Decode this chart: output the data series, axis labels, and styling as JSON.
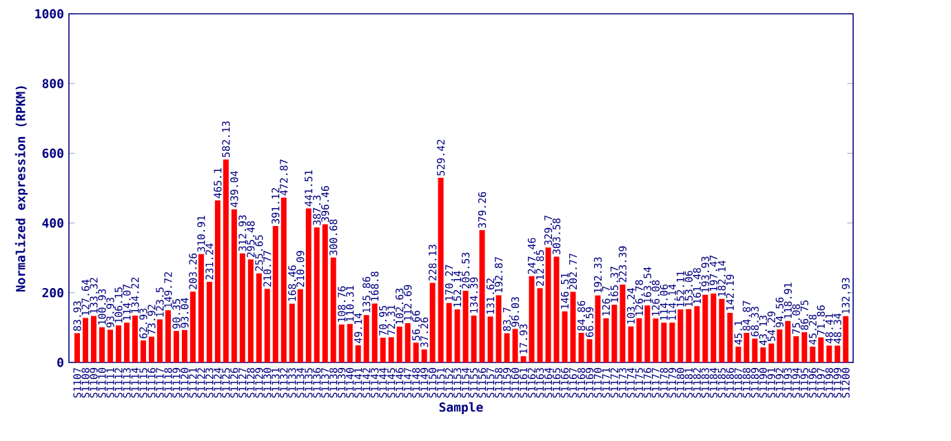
{
  "chart_data": {
    "type": "bar",
    "xlabel": "Sample",
    "ylabel": "Normalized expression (RPKM)",
    "color": "#ff0000",
    "data_labels": true,
    "categories": [
      "S1107",
      "S1108",
      "S1109",
      "S1110",
      "S1111",
      "S1112",
      "S1113",
      "S1114",
      "S1115",
      "S1116",
      "S1117",
      "S1118",
      "S1119",
      "S1120",
      "S1121",
      "S1122",
      "S1123",
      "S1124",
      "S1125",
      "S1126",
      "S1127",
      "S1128",
      "S1129",
      "S1130",
      "S1131",
      "S1132",
      "S1133",
      "S1134",
      "S1135",
      "S1136",
      "S1137",
      "S1138",
      "S1139",
      "S1140",
      "S1141",
      "S1142",
      "S1143",
      "S1144",
      "S1145",
      "S1146",
      "S1147",
      "S1148",
      "S1149",
      "S1150",
      "S1151",
      "S1152",
      "S1153",
      "S1154",
      "S1155",
      "S1156",
      "S1157",
      "S1158",
      "S1159",
      "S1160",
      "S1161",
      "S1162",
      "S1163",
      "S1164",
      "S1165",
      "S1166",
      "S1167",
      "S1168",
      "S1169",
      "S1170",
      "S1171",
      "S1172",
      "S1173",
      "S1174",
      "S1175",
      "S1176",
      "S1177",
      "S1178",
      "S1179",
      "S1180",
      "S1181",
      "S1182",
      "S1183",
      "S1184",
      "S1185",
      "S1186",
      "S1187",
      "S1188",
      "S1189",
      "S1190",
      "S1191",
      "S1192",
      "S1193",
      "S1194",
      "S1195",
      "S1196",
      "S1197",
      "S1198",
      "S1199",
      "S1200"
    ],
    "values": [
      83.93,
      127.64,
      133.32,
      100.93,
      93.93,
      106.15,
      114.07,
      134.22,
      62.93,
      73.92,
      123.5,
      149.72,
      90.35,
      93.04,
      203.26,
      310.91,
      231.24,
      465.1,
      582.13,
      439.04,
      312.93,
      295.48,
      255.65,
      210.77,
      391.12,
      472.87,
      168.46,
      210.09,
      441.51,
      387.3,
      396.46,
      300.68,
      108.76,
      110.31,
      49.14,
      135.86,
      168.8,
      70.95,
      72.31,
      102.63,
      112.69,
      56.66,
      37.26,
      228.13,
      529.42,
      170.27,
      152.14,
      205.53,
      134.39,
      379.26,
      131.62,
      192.87,
      83.7,
      96.03,
      17.93,
      247.46,
      212.85,
      329.7,
      303.58,
      146.51,
      202.77,
      84.86,
      66.59,
      192.33,
      126.7,
      165.37,
      223.39,
      103.24,
      126.78,
      163.54,
      126.08,
      114.06,
      114.14,
      152.11,
      153.06,
      161.48,
      193.93,
      197.47,
      182.14,
      142.19,
      45.1,
      84.87,
      68.33,
      43.13,
      54.29,
      94.56,
      118.91,
      75.08,
      86.75,
      45.28,
      71.86,
      48.41,
      48.34,
      132.93
    ],
    "ylim": [
      0,
      1000
    ],
    "yticks": [
      0,
      200,
      400,
      600,
      800,
      1000
    ]
  }
}
